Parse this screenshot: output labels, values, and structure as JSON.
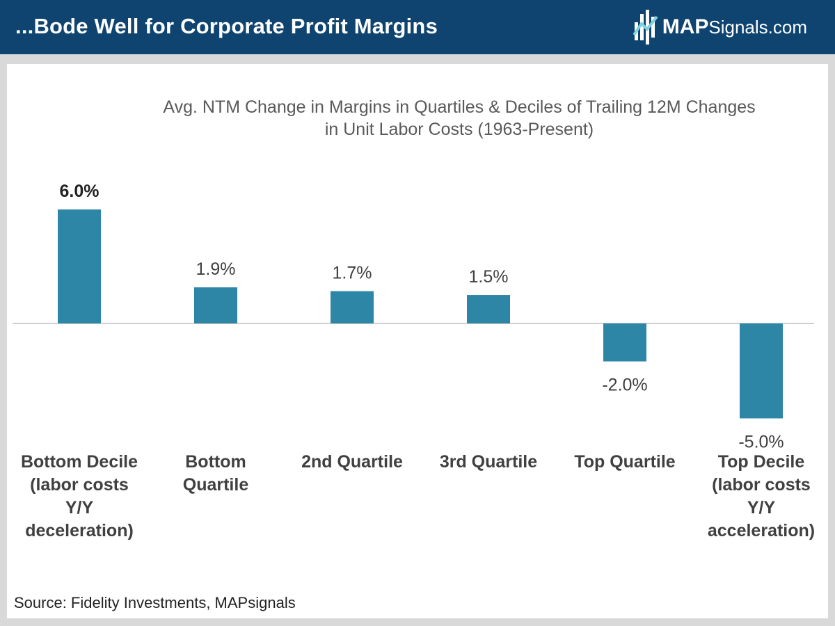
{
  "header": {
    "title": "...Bode Well for Corporate Profit Margins",
    "logo_brand": "MAP",
    "logo_suffix": "Signals.com",
    "background": "#0f4470"
  },
  "source": "Source: Fidelity Investments, MAPsignals",
  "chart_data": {
    "type": "bar",
    "title_line1": "Avg. NTM Change in Margins in Quartiles & Deciles of Trailing 12M Changes",
    "title_line2": "in Unit Labor Costs (1963-Present)",
    "categories": [
      [
        "Bottom Decile",
        "(labor costs",
        "Y/Y",
        "deceleration)"
      ],
      [
        "Bottom",
        "Quartile"
      ],
      [
        "2nd Quartile"
      ],
      [
        "3rd Quartile"
      ],
      [
        "Top Quartile"
      ],
      [
        "Top Decile",
        "(labor costs",
        "Y/Y",
        "acceleration)"
      ]
    ],
    "values": [
      6.0,
      1.9,
      1.7,
      1.5,
      -2.0,
      -5.0
    ],
    "labels": [
      "6.0%",
      "1.9%",
      "1.7%",
      "1.5%",
      "-2.0%",
      "-5.0%"
    ],
    "label_bold": [
      true,
      false,
      false,
      false,
      false,
      false
    ],
    "bar_color": "#2e86a6",
    "ylim": [
      -5.0,
      6.0
    ],
    "grid": false,
    "legend": "none"
  }
}
